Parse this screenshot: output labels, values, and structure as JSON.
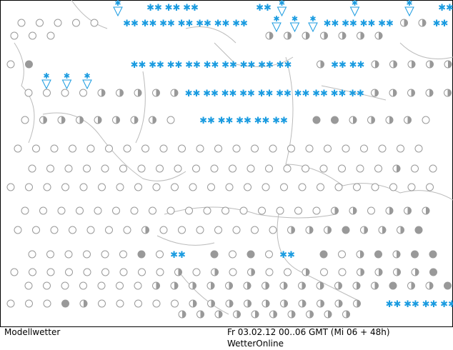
{
  "footer": {
    "left": "Modellwetter",
    "right": "Fr 03.02.12 00..06 GMT (Mi 06 + 48h)",
    "brand": "WetterOnline"
  }
}
